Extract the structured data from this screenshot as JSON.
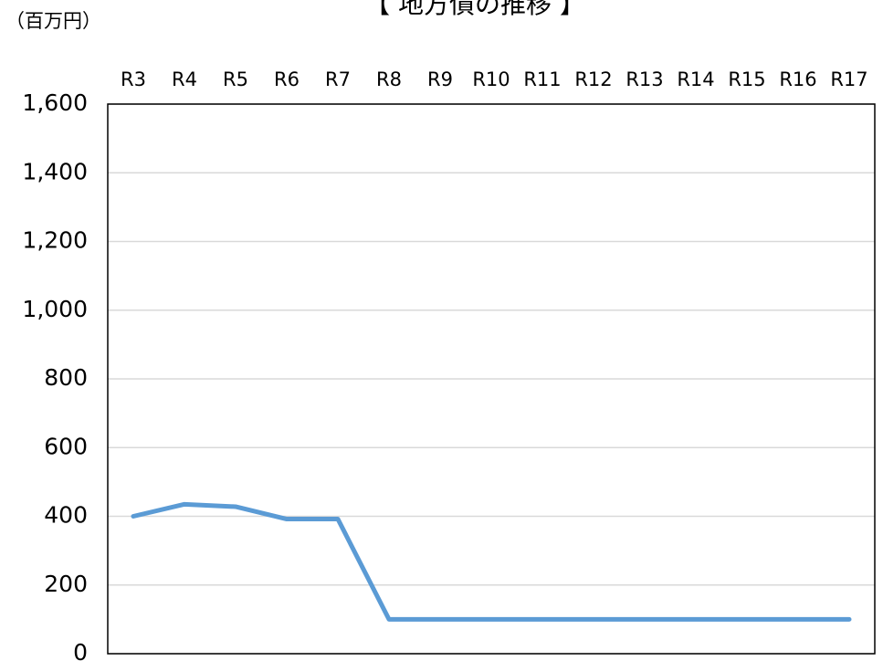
{
  "chart_data": {
    "type": "line",
    "title": "【 地方債の推移 】",
    "y_label": "（百万円）",
    "categories": [
      "R3",
      "R4",
      "R5",
      "R6",
      "R7",
      "R8",
      "R9",
      "R10",
      "R11",
      "R12",
      "R13",
      "R14",
      "R15",
      "R16",
      "R17"
    ],
    "series": [
      {
        "name": "地方債",
        "color": "#5b9bd5",
        "values": [
          400,
          435,
          428,
          392,
          392,
          100,
          100,
          100,
          100,
          100,
          100,
          100,
          100,
          100,
          100
        ]
      }
    ],
    "ylim": [
      0,
      1600
    ],
    "yticks": [
      0,
      200,
      400,
      600,
      800,
      {
        "value": 1000,
        "label": "1,000"
      },
      {
        "value": 1200,
        "label": "1,200"
      },
      {
        "value": 1400,
        "label": "1,400"
      },
      {
        "value": 1600,
        "label": "1,600"
      }
    ],
    "grid": true
  }
}
